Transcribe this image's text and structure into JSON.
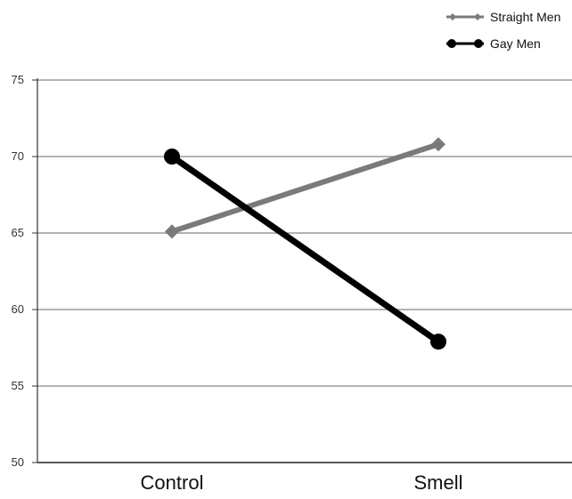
{
  "chart_data": {
    "type": "line",
    "categories": [
      "Control",
      "Smell"
    ],
    "series": [
      {
        "name": "Straight Men",
        "values": [
          65.1,
          70.8
        ],
        "color": "#7a7a7a",
        "marker": "diamond"
      },
      {
        "name": "Gay Men",
        "values": [
          70.0,
          57.9
        ],
        "color": "#000000",
        "marker": "circle"
      }
    ],
    "ylim": [
      50,
      75
    ],
    "yticks": [
      "75",
      "70",
      "65",
      "60",
      "55",
      "50"
    ],
    "title": "",
    "xlabel": "",
    "ylabel": "",
    "grid": true,
    "legend_position": "top-right"
  }
}
